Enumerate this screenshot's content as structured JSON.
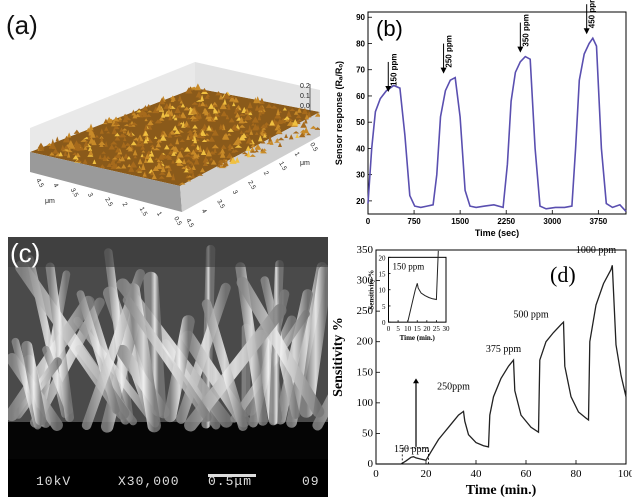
{
  "panels": {
    "a": {
      "label": "(a)",
      "y_ticks": [
        "0.2",
        "0.1",
        "0.0"
      ],
      "unit_label": "μm",
      "axis1_ticks": [
        "4.5",
        "4",
        "3.5",
        "3",
        "2.5",
        "2",
        "1.5",
        "1",
        "0.5"
      ],
      "axis2_ticks": [
        "4.5",
        "4",
        "3.5",
        "3",
        "2.5",
        "2",
        "1.5",
        "1",
        "0.5"
      ]
    },
    "b": {
      "label": "(b)"
    },
    "c": {
      "label": "(c)",
      "sem_voltage": "10kV",
      "sem_mag": "X30,000",
      "sem_scale": "0.5μm",
      "sem_extra": "09"
    },
    "d": {
      "label": "(d)"
    }
  },
  "chart_data": [
    {
      "type": "line",
      "panel": "b",
      "xlabel": "Time (sec)",
      "ylabel": "Sensor response (Rₐ/Rₒ)",
      "xlim": [
        0,
        4200
      ],
      "ylim": [
        15,
        92
      ],
      "x_ticks": [
        0,
        750,
        1500,
        2250,
        3000,
        3750
      ],
      "y_ticks": [
        20,
        30,
        40,
        50,
        60,
        70,
        80,
        90
      ],
      "series": [
        {
          "color": "#5a4fb0",
          "x": [
            0,
            60,
            120,
            200,
            300,
            420,
            520,
            600,
            680,
            760,
            860,
            960,
            1060,
            1120,
            1180,
            1260,
            1340,
            1420,
            1500,
            1580,
            1660,
            1760,
            1900,
            2050,
            2200,
            2270,
            2330,
            2400,
            2480,
            2560,
            2640,
            2720,
            2800,
            2900,
            3050,
            3200,
            3320,
            3380,
            3440,
            3520,
            3600,
            3660,
            3720,
            3800,
            3880,
            3980,
            4100,
            4200
          ],
          "y": [
            19,
            40,
            54,
            59,
            62,
            64,
            63,
            45,
            22,
            18,
            17.5,
            18,
            18.5,
            30,
            52,
            62,
            66,
            67,
            52,
            24,
            18,
            17.5,
            18,
            18.5,
            17.5,
            34,
            58,
            69,
            73,
            75,
            74,
            40,
            18,
            17,
            17.5,
            17.5,
            18,
            40,
            66,
            76,
            80,
            82,
            79,
            40,
            19,
            17.5,
            18.5,
            16
          ]
        }
      ],
      "annotations": [
        "150 ppm",
        "250 ppm",
        "350 ppm",
        "450 ppm"
      ]
    },
    {
      "type": "line",
      "panel": "d",
      "xlabel": "Time (min.)",
      "ylabel": "Sensitivity %",
      "xlim": [
        0,
        100
      ],
      "ylim": [
        0,
        350
      ],
      "x_ticks": [
        0,
        20,
        40,
        60,
        80,
        100
      ],
      "y_ticks": [
        0,
        50,
        100,
        150,
        200,
        250,
        300,
        350
      ],
      "series": [
        {
          "color": "#222222",
          "x": [
            0,
            5,
            10,
            12,
            14,
            15,
            16,
            18,
            20,
            22,
            25,
            27,
            29,
            31,
            33,
            35,
            35.5,
            37,
            40,
            43,
            45,
            45.5,
            47,
            50,
            53,
            55,
            55.5,
            58,
            62,
            65,
            65.5,
            68,
            71,
            74,
            75,
            75.5,
            78,
            81,
            84,
            85,
            85.5,
            88,
            91,
            94,
            94.5,
            96,
            98,
            100
          ],
          "y": [
            0,
            0,
            0,
            5,
            11,
            12,
            10,
            8,
            6,
            20,
            40,
            50,
            60,
            70,
            80,
            86,
            70,
            48,
            35,
            30,
            28,
            80,
            110,
            140,
            160,
            170,
            120,
            80,
            60,
            52,
            170,
            200,
            215,
            228,
            232,
            160,
            110,
            85,
            75,
            72,
            200,
            260,
            295,
            318,
            325,
            195,
            145,
            110
          ]
        }
      ],
      "annotations": [
        "150 ppm",
        "250ppm",
        "375 ppm",
        "500 ppm",
        "1000 ppm"
      ]
    },
    {
      "type": "line",
      "panel": "d-inset",
      "xlabel": "Time (min.)",
      "ylabel": "Sensitivity %",
      "xlim": [
        0,
        30
      ],
      "ylim": [
        0,
        20
      ],
      "x_ticks": [
        0,
        5,
        10,
        15,
        20,
        25,
        30
      ],
      "y_ticks": [
        0,
        5,
        10,
        15,
        20
      ],
      "series": [
        {
          "color": "#222222",
          "x": [
            10,
            11,
            12,
            13,
            14,
            15,
            15.5,
            17,
            19,
            21,
            23,
            25,
            25.5,
            26
          ],
          "y": [
            0,
            2.5,
            5,
            7.5,
            10,
            12,
            10.5,
            9,
            8.2,
            7.6,
            7.2,
            7,
            15,
            22
          ]
        }
      ],
      "annotations": [
        "150 ppm"
      ]
    }
  ]
}
